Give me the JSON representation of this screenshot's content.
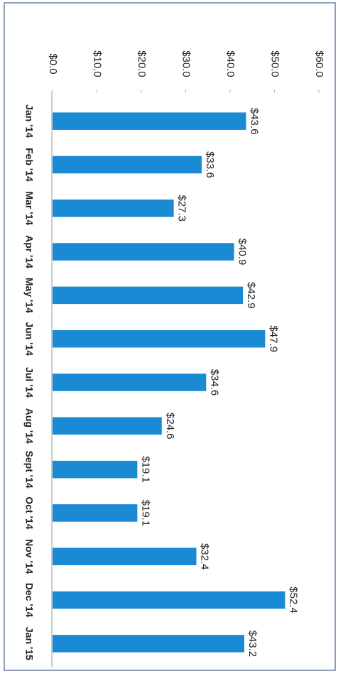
{
  "chart_data": {
    "type": "bar",
    "categories": [
      "Jan '14",
      "Feb '14",
      "Mar '14",
      "Apr '14",
      "May '14",
      "Jun '14",
      "Jul '14",
      "Aug '14",
      "Sept '14",
      "Oct '14",
      "Nov '14",
      "Dec '14",
      "Jan '15"
    ],
    "values": [
      43.6,
      33.6,
      27.3,
      40.9,
      42.9,
      47.9,
      34.6,
      24.6,
      19.1,
      19.1,
      32.4,
      52.4,
      43.2
    ],
    "value_labels": [
      "$43.6",
      "$33.6",
      "$27.3",
      "$40.9",
      "$42.9",
      "$47.9",
      "$34.6",
      "$24.6",
      "$19.1",
      "$19.1",
      "$32.4",
      "$52.4",
      "$43.2"
    ],
    "color": "#1a8ad4",
    "ylim": [
      0,
      60
    ],
    "yticks": [
      {
        "value": 0,
        "label": "$0.0"
      },
      {
        "value": 10,
        "label": "$10.0"
      },
      {
        "value": 20,
        "label": "$20.0"
      },
      {
        "value": 30,
        "label": "$30.0"
      },
      {
        "value": 40,
        "label": "$40.0"
      },
      {
        "value": 50,
        "label": "$50.0"
      },
      {
        "value": 60,
        "label": "$60.0"
      }
    ],
    "grid": false
  }
}
